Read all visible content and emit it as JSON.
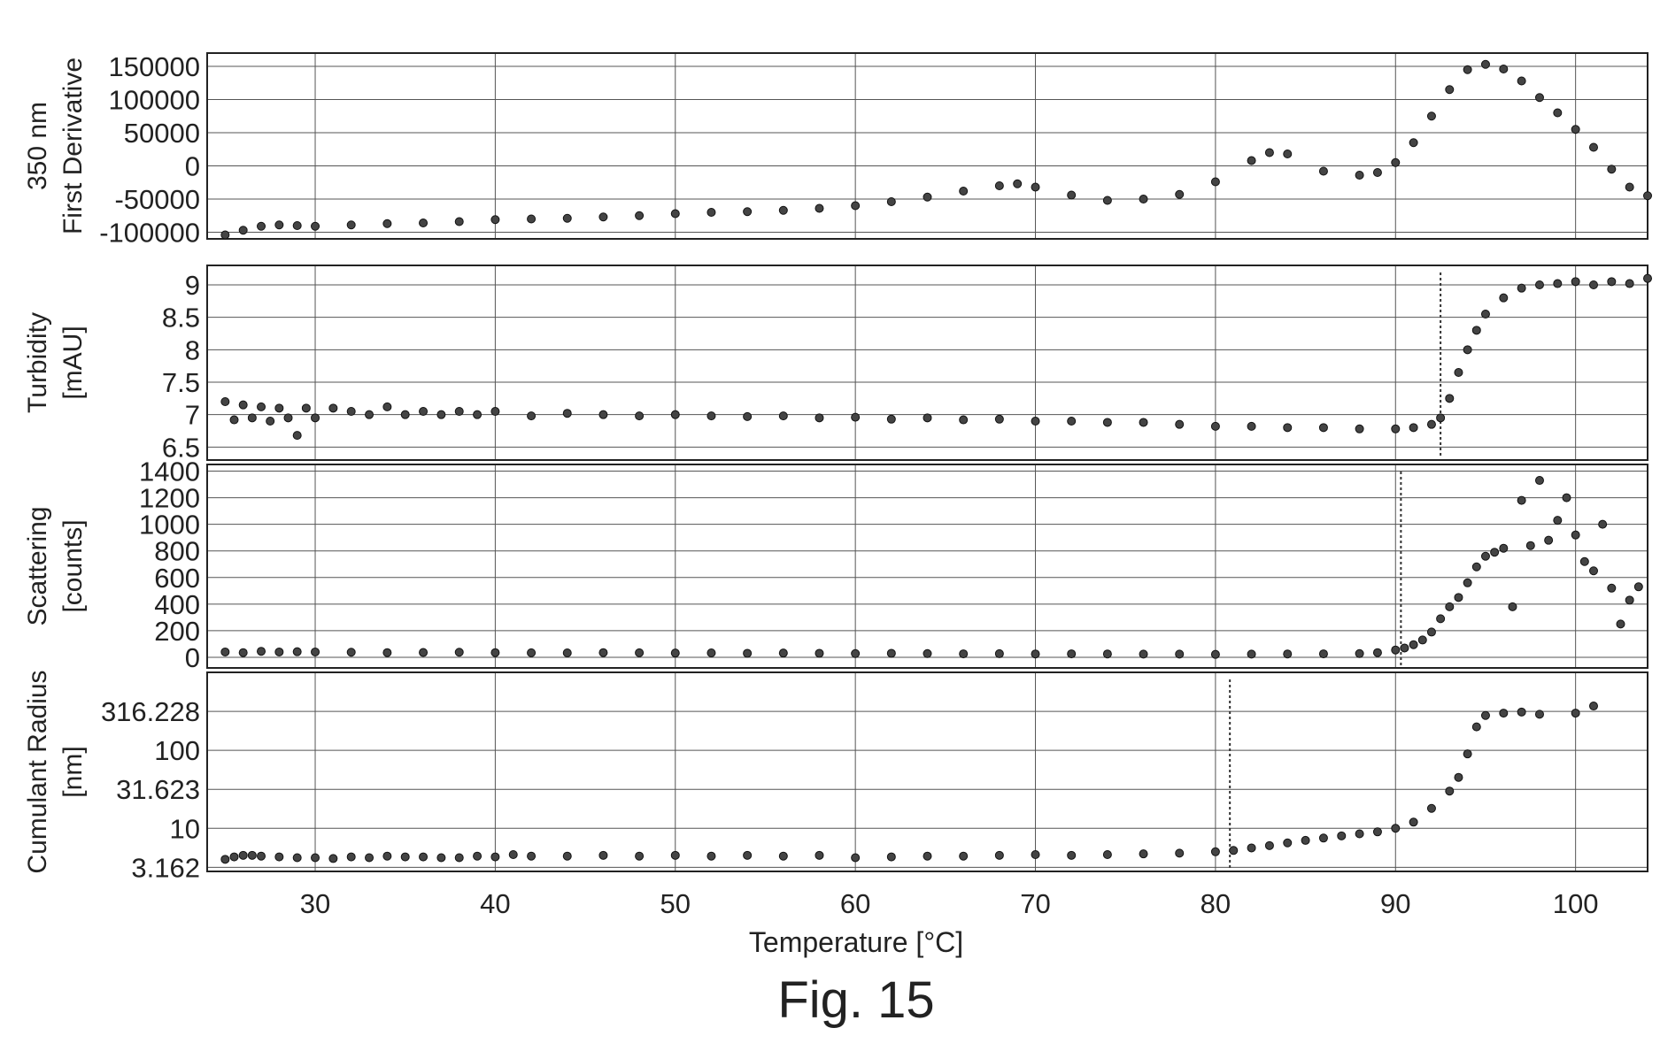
{
  "figure": {
    "caption": "Fig. 15",
    "xlabel": "Temperature [°C]"
  },
  "chart_data": [
    {
      "type": "scatter",
      "ylabel_lines": [
        "350 nm",
        "First Derivative"
      ],
      "x_ticks": [
        30,
        40,
        50,
        60,
        70,
        80,
        90,
        100
      ],
      "xlim": [
        24,
        104
      ],
      "y_scale": "linear",
      "ylim": [
        -110000,
        170000
      ],
      "y_ticks": [
        {
          "value": 150000,
          "label": "150000"
        },
        {
          "value": 100000,
          "label": "100000"
        },
        {
          "value": 50000,
          "label": "50000"
        },
        {
          "value": 0,
          "label": "0"
        },
        {
          "value": -50000,
          "label": "-50000"
        },
        {
          "value": -100000,
          "label": "-100000"
        }
      ],
      "grid": true,
      "markers": [],
      "series": [
        {
          "x": [
            25,
            26,
            27,
            28,
            29,
            30,
            32,
            34,
            36,
            38,
            40,
            42,
            44,
            46,
            48,
            50,
            52,
            54,
            56,
            58,
            60,
            62,
            64,
            66,
            68,
            69,
            70,
            72,
            74,
            76,
            78,
            80,
            82,
            83,
            84,
            86,
            88,
            89,
            90,
            91,
            92,
            93,
            94,
            95,
            96,
            97,
            98,
            99,
            100,
            101,
            102,
            103,
            104
          ],
          "y": [
            -104000,
            -97000,
            -91000,
            -89000,
            -90000,
            -91000,
            -89000,
            -87000,
            -86000,
            -84000,
            -81000,
            -80000,
            -79000,
            -77000,
            -75000,
            -72000,
            -70000,
            -69000,
            -67000,
            -64000,
            -60000,
            -54000,
            -47000,
            -38000,
            -30000,
            -27000,
            -32000,
            -44000,
            -52000,
            -50000,
            -43000,
            -24000,
            8000,
            20000,
            18000,
            -8000,
            -14000,
            -10000,
            5000,
            35000,
            75000,
            115000,
            145000,
            153000,
            146000,
            128000,
            103000,
            80000,
            55000,
            28000,
            -5000,
            -32000,
            -45000
          ]
        }
      ]
    },
    {
      "type": "scatter",
      "ylabel_lines": [
        "Turbidity",
        "[mAU]"
      ],
      "x_ticks": [
        30,
        40,
        50,
        60,
        70,
        80,
        90,
        100
      ],
      "xlim": [
        24,
        104
      ],
      "y_scale": "linear",
      "ylim": [
        6.3,
        9.3
      ],
      "y_ticks": [
        {
          "value": 9,
          "label": "9"
        },
        {
          "value": 8.5,
          "label": "8.5"
        },
        {
          "value": 8,
          "label": "8"
        },
        {
          "value": 7.5,
          "label": "7.5"
        },
        {
          "value": 7,
          "label": "7"
        },
        {
          "value": 6.5,
          "label": "6.5"
        }
      ],
      "grid": true,
      "markers": [
        92.5
      ],
      "series": [
        {
          "x": [
            25,
            25.5,
            26,
            26.5,
            27,
            27.5,
            28,
            28.5,
            29,
            29.5,
            30,
            31,
            32,
            33,
            34,
            35,
            36,
            37,
            38,
            39,
            40,
            42,
            44,
            46,
            48,
            50,
            52,
            54,
            56,
            58,
            60,
            62,
            64,
            66,
            68,
            70,
            72,
            74,
            76,
            78,
            80,
            82,
            84,
            86,
            88,
            90,
            91,
            92,
            92.5,
            93,
            93.5,
            94,
            94.5,
            95,
            96,
            97,
            98,
            99,
            100,
            101,
            102,
            103,
            104
          ],
          "y": [
            7.2,
            6.92,
            7.15,
            6.95,
            7.12,
            6.9,
            7.1,
            6.95,
            6.68,
            7.1,
            6.95,
            7.1,
            7.05,
            7.0,
            7.12,
            7.0,
            7.05,
            7.0,
            7.05,
            7.0,
            7.05,
            6.98,
            7.02,
            7.0,
            6.98,
            7.0,
            6.98,
            6.97,
            6.98,
            6.95,
            6.96,
            6.93,
            6.95,
            6.92,
            6.93,
            6.9,
            6.9,
            6.88,
            6.88,
            6.85,
            6.82,
            6.82,
            6.8,
            6.8,
            6.78,
            6.78,
            6.8,
            6.85,
            6.95,
            7.25,
            7.65,
            8.0,
            8.3,
            8.55,
            8.8,
            8.95,
            9.0,
            9.02,
            9.05,
            9.0,
            9.05,
            9.02,
            9.1
          ]
        }
      ]
    },
    {
      "type": "scatter",
      "ylabel_lines": [
        "Scattering",
        "[counts]"
      ],
      "x_ticks": [
        30,
        40,
        50,
        60,
        70,
        80,
        90,
        100
      ],
      "xlim": [
        24,
        104
      ],
      "y_scale": "linear",
      "ylim": [
        -80,
        1450
      ],
      "y_ticks": [
        {
          "value": 1400,
          "label": "1400"
        },
        {
          "value": 1200,
          "label": "1200"
        },
        {
          "value": 1000,
          "label": "1000"
        },
        {
          "value": 800,
          "label": "800"
        },
        {
          "value": 600,
          "label": "600"
        },
        {
          "value": 400,
          "label": "400"
        },
        {
          "value": 200,
          "label": "200"
        },
        {
          "value": 0,
          "label": "0"
        }
      ],
      "grid": true,
      "markers": [
        90.3
      ],
      "series": [
        {
          "x": [
            25,
            26,
            27,
            28,
            29,
            30,
            32,
            34,
            36,
            38,
            40,
            42,
            44,
            46,
            48,
            50,
            52,
            54,
            56,
            58,
            60,
            62,
            64,
            66,
            68,
            70,
            72,
            74,
            76,
            78,
            80,
            82,
            84,
            86,
            88,
            89,
            90,
            90.5,
            91,
            91.5,
            92,
            92.5,
            93,
            93.5,
            94,
            94.5,
            95,
            95.5,
            96,
            96.5,
            97,
            97.5,
            98,
            98.5,
            99,
            99.5,
            100,
            100.5,
            101,
            101.5,
            102,
            102.5,
            103,
            103.5
          ],
          "y": [
            40,
            35,
            45,
            40,
            42,
            40,
            38,
            35,
            36,
            38,
            35,
            34,
            33,
            35,
            34,
            32,
            33,
            30,
            32,
            30,
            28,
            30,
            28,
            26,
            27,
            25,
            26,
            25,
            24,
            24,
            22,
            24,
            25,
            26,
            28,
            35,
            55,
            70,
            95,
            130,
            190,
            290,
            380,
            450,
            560,
            680,
            760,
            790,
            820,
            380,
            1180,
            840,
            1330,
            880,
            1030,
            1200,
            920,
            720,
            650,
            1000,
            520,
            250,
            430,
            530
          ]
        }
      ]
    },
    {
      "type": "scatter",
      "ylabel_lines": [
        "Cumulant Radius",
        "[nm]"
      ],
      "x_ticks": [
        30,
        40,
        50,
        60,
        70,
        80,
        90,
        100
      ],
      "xlim": [
        24,
        104
      ],
      "y_scale": "log",
      "ylim": [
        2.8,
        1000
      ],
      "y_ticks": [
        {
          "value": 316.228,
          "label": "316.228"
        },
        {
          "value": 100,
          "label": "100"
        },
        {
          "value": 31.623,
          "label": "31.623"
        },
        {
          "value": 10,
          "label": "10"
        },
        {
          "value": 3.162,
          "label": "3.162"
        }
      ],
      "grid": true,
      "markers": [
        80.8
      ],
      "series": [
        {
          "x": [
            25,
            25.5,
            26,
            26.5,
            27,
            28,
            29,
            30,
            31,
            32,
            33,
            34,
            35,
            36,
            37,
            38,
            39,
            40,
            41,
            42,
            44,
            46,
            48,
            50,
            52,
            54,
            56,
            58,
            60,
            62,
            64,
            66,
            68,
            70,
            72,
            74,
            76,
            78,
            80,
            81,
            82,
            83,
            84,
            85,
            86,
            87,
            88,
            89,
            90,
            91,
            92,
            93,
            93.5,
            94,
            94.5,
            95,
            96,
            97,
            98,
            100,
            101
          ],
          "y": [
            4.0,
            4.3,
            4.5,
            4.5,
            4.4,
            4.3,
            4.2,
            4.2,
            4.1,
            4.3,
            4.2,
            4.4,
            4.3,
            4.3,
            4.2,
            4.2,
            4.4,
            4.3,
            4.6,
            4.4,
            4.4,
            4.5,
            4.4,
            4.5,
            4.4,
            4.5,
            4.4,
            4.5,
            4.2,
            4.3,
            4.4,
            4.4,
            4.5,
            4.6,
            4.5,
            4.6,
            4.7,
            4.8,
            5.0,
            5.2,
            5.6,
            6.0,
            6.5,
            7.0,
            7.5,
            8.0,
            8.5,
            9.0,
            10.0,
            12.0,
            18.0,
            30.0,
            45.0,
            90.0,
            200.0,
            280.0,
            300.0,
            310.0,
            290.0,
            300.0,
            370.0
          ]
        }
      ]
    }
  ]
}
